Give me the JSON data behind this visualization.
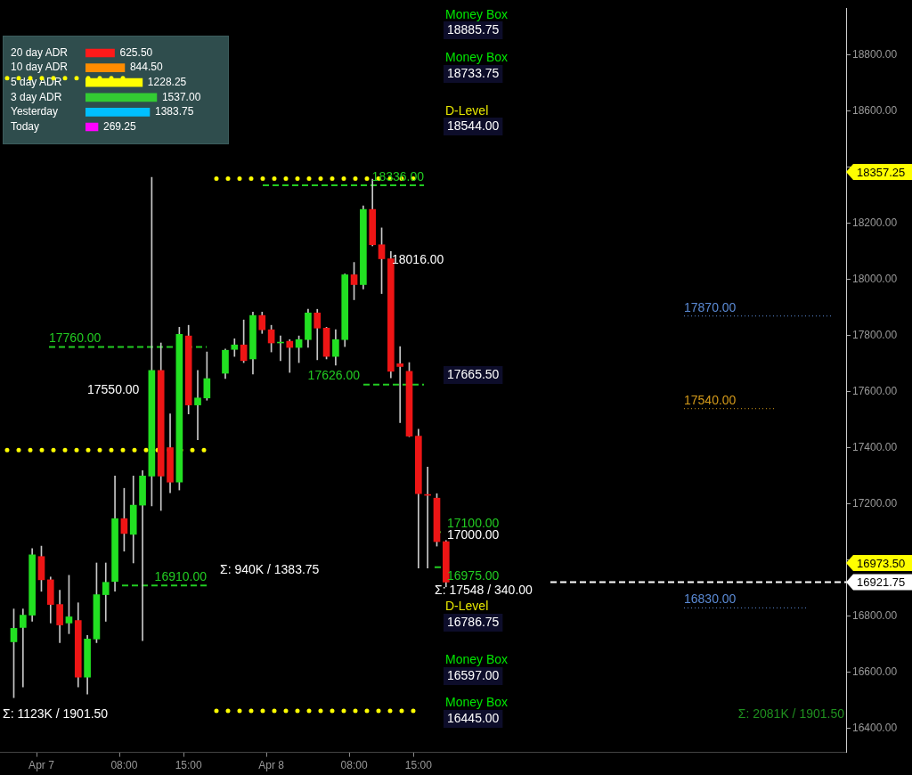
{
  "chart_data": [
    {
      "type": "candlestick",
      "categories": [
        null,
        null,
        null,
        null,
        "Apr 7",
        null,
        null,
        null,
        null,
        null,
        null,
        null,
        null,
        "08:00",
        null,
        null,
        null,
        null,
        null,
        null,
        "15:00",
        null,
        null,
        null,
        null,
        null,
        null,
        null,
        null,
        "Apr 8",
        null,
        null,
        null,
        null,
        null,
        null,
        null,
        null,
        "08:00",
        null,
        null,
        null,
        null,
        null,
        null,
        "15:00",
        null,
        null,
        null,
        null,
        null,
        null,
        null,
        null,
        null,
        null,
        null,
        null,
        null,
        null,
        null,
        null,
        null,
        null,
        null,
        null,
        null,
        null,
        null,
        null,
        null,
        null,
        null,
        null,
        null,
        null,
        null,
        null,
        null,
        null,
        null,
        null,
        null,
        null,
        null,
        null,
        null,
        null,
        null,
        null,
        null,
        null
      ],
      "ohlc": [
        null,
        [
          16709,
          16826,
          16510,
          16757
        ],
        [
          16760,
          16826,
          16548,
          16804
        ],
        [
          16804,
          17041,
          16782,
          17019
        ],
        [
          17013,
          17050,
          16889,
          16930
        ],
        [
          16930,
          16940,
          16776,
          16842
        ],
        [
          16842,
          16893,
          16706,
          16769
        ],
        [
          16776,
          16946,
          16738,
          16798
        ],
        [
          16785,
          16848,
          16548,
          16583
        ],
        [
          16583,
          16732,
          16523,
          16719
        ],
        [
          16719,
          16990,
          16706,
          16877
        ],
        [
          16877,
          16990,
          16782,
          16921
        ],
        [
          16924,
          17300,
          16889,
          17148
        ],
        [
          17148,
          17256,
          17032,
          17095
        ],
        [
          17092,
          17300,
          16990,
          17196
        ],
        [
          17196,
          17319,
          16713,
          17300
        ],
        [
          17300,
          18364,
          17193,
          17676
        ],
        [
          17676,
          17774,
          17177,
          17300
        ],
        [
          17401,
          17521,
          17240,
          17278
        ],
        [
          17278,
          17830,
          17250,
          17805
        ],
        [
          17799,
          17837,
          17521,
          17553
        ],
        [
          17553,
          17676,
          17429,
          17578
        ],
        [
          17578,
          17742,
          17570,
          17647
        ],
        null,
        [
          17666,
          17752,
          17647,
          17748
        ],
        [
          17751,
          17789,
          17726,
          17767
        ],
        [
          17767,
          17856,
          17704,
          17711
        ],
        [
          17717,
          17884,
          17663,
          17872
        ],
        [
          17872,
          17884,
          17808,
          17821
        ],
        [
          17821,
          17837,
          17742,
          17774
        ],
        [
          17774,
          17799,
          17711,
          17777
        ],
        [
          17780,
          17786,
          17669,
          17758
        ],
        [
          17758,
          17799,
          17704,
          17786
        ],
        [
          17786,
          17894,
          17758,
          17881
        ],
        [
          17881,
          17894,
          17714,
          17827
        ],
        [
          17827,
          17830,
          17717,
          17726
        ],
        [
          17726,
          17821,
          17695,
          17786
        ],
        [
          17786,
          18020,
          17761,
          18017
        ],
        [
          18017,
          18061,
          17928,
          17982
        ],
        [
          17982,
          18263,
          17966,
          18250
        ],
        [
          18250,
          18358,
          18120,
          18124
        ],
        [
          18124,
          18184,
          17950,
          18074
        ],
        [
          18074,
          18100,
          17650,
          17673
        ],
        [
          17700,
          17761,
          17490,
          17690
        ],
        [
          17673,
          17704,
          17440,
          17442
        ],
        [
          17442,
          17467,
          16972,
          17237
        ],
        [
          17234,
          17332,
          16972,
          17231
        ],
        [
          17221,
          17237,
          17050,
          17066
        ],
        [
          17066,
          17070,
          16905,
          16921.75
        ],
        null,
        null,
        null,
        null,
        null,
        null,
        null,
        null,
        null,
        null,
        null,
        null,
        null,
        null,
        null,
        null,
        null,
        null,
        null,
        null,
        null,
        null,
        null,
        null,
        null,
        null,
        null,
        null,
        null,
        null,
        null,
        null,
        null,
        null,
        null,
        null,
        null,
        null,
        null,
        null,
        null,
        null,
        null
      ],
      "ylim": [
        16315,
        18967
      ],
      "yticks": [
        {
          "value": 16400,
          "label": "16400.00"
        },
        {
          "value": 16600,
          "label": "16600.00"
        },
        {
          "value": 16800,
          "label": "16800.00"
        },
        {
          "value": 17000,
          "label": null
        },
        {
          "value": 17200,
          "label": "17200.00"
        },
        {
          "value": 17400,
          "label": "17400.00"
        },
        {
          "value": 17600,
          "label": "17600.00"
        },
        {
          "value": 17800,
          "label": "17800.00"
        },
        {
          "value": 18000,
          "label": "18000.00"
        },
        {
          "value": 18200,
          "label": "18200.00"
        },
        {
          "value": 18400,
          "label": null
        },
        {
          "value": 18600,
          "label": "18600.00"
        },
        {
          "value": 18800,
          "label": "18800.00"
        }
      ],
      "grid": false,
      "legend": false,
      "ref_lines": [
        {
          "axis": "y",
          "value": 18718,
          "label": null,
          "color": "#ffff00",
          "line_style": "dotted"
        },
        {
          "axis": "y",
          "value": 18360,
          "label": null,
          "color": "#ffff00",
          "line_style": "dotted"
        },
        {
          "axis": "y",
          "value": 17392,
          "label": null,
          "color": "#ffff00",
          "line_style": "dotted"
        },
        {
          "axis": "y",
          "value": 16463,
          "label": null,
          "color": "#ffff00",
          "line_style": "dotted"
        },
        {
          "axis": "y",
          "value": 18336,
          "label": "18336.00",
          "color": "#22cc22",
          "line_style": "dashed"
        },
        {
          "axis": "y",
          "value": 17760,
          "label": "17760.00",
          "color": "#22cc22",
          "line_style": "dashed"
        },
        {
          "axis": "y",
          "value": 17626,
          "label": "17626.00",
          "color": "#22cc22",
          "line_style": "dashed"
        },
        {
          "axis": "y",
          "value": 16910,
          "label": "16910.00",
          "color": "#22cc22",
          "line_style": "dashed"
        },
        {
          "axis": "y",
          "value": 17100,
          "label": "17100.00",
          "color": "#22cc22",
          "line_style": "dashed"
        },
        {
          "axis": "y",
          "value": 16975,
          "label": "16975.00",
          "color": "#22cc22",
          "line_style": "dashed"
        },
        {
          "axis": "y",
          "value": 17870,
          "label": "17870.00",
          "color": "#5b8bd6",
          "line_style": "dotted"
        },
        {
          "axis": "y",
          "value": 17540,
          "label": "17540.00",
          "color": "#d49a1a",
          "line_style": "dotted"
        },
        {
          "axis": "y",
          "value": 16830,
          "label": "16830.00",
          "color": "#5b8bd6",
          "line_style": "dotted"
        },
        {
          "axis": "y",
          "value": 16921.75,
          "label": "16921.75",
          "color": "#ffffff",
          "line_style": "dashed"
        }
      ],
      "annotations": [
        "Σ: 1123K / 1901.50",
        "Σ: 940K / 1383.75",
        "Σ: 17548 / 340.00",
        "Σ: 2081K / 1901.50",
        "18016.00",
        "17550.00",
        "17000.00",
        "18357.25",
        "16973.50",
        "Money Box",
        "18885.75",
        "Money Box",
        "18733.75",
        "D-Level",
        "18544.00",
        "17665.50",
        "D-Level",
        "16786.75",
        "Money Box",
        "16597.00",
        "Money Box",
        "16445.00"
      ]
    },
    {
      "type": "bar",
      "orientation": "horizontal",
      "categories": [
        "20 day ADR",
        "10 day ADR",
        "5 day ADR",
        "3 day ADR",
        "Yesterday",
        "Today"
      ],
      "values": [
        625.5,
        844.5,
        1228.25,
        1537,
        1383.75,
        269.25
      ],
      "value_labels": [
        "625.50",
        "844.50",
        "1228.25",
        "1537.00",
        "1383.75",
        "269.25"
      ],
      "colors": [
        "#ff1a1a",
        "#ff8c00",
        "#ffff00",
        "#33cc33",
        "#00bfff",
        "#ff00ff"
      ],
      "legend": false
    }
  ]
}
